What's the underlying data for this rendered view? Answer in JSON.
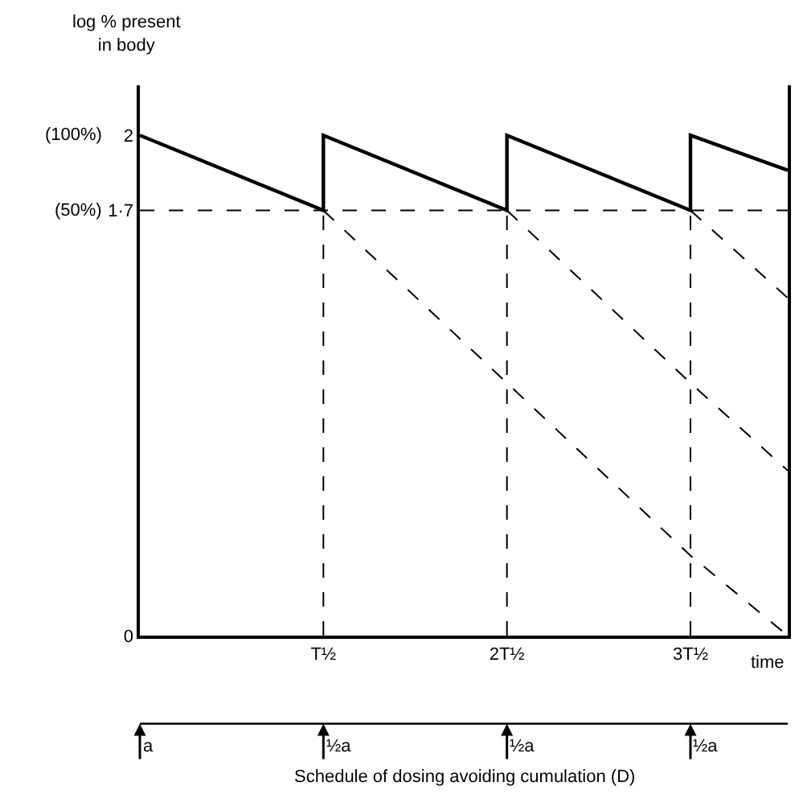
{
  "chart_data": {
    "type": "line",
    "ylabel": "log % present\nin body",
    "xlabel": "time",
    "xlim": [
      0,
      3.53
    ],
    "ylim": [
      0,
      2.2
    ],
    "xticks": [
      {
        "value": 0,
        "label": null
      },
      {
        "value": 1,
        "label": "T½"
      },
      {
        "value": 2,
        "label": "2T½"
      },
      {
        "value": 3,
        "label": "3T½"
      }
    ],
    "yticks": [
      0,
      {
        "value": 1.7,
        "label": "1·7"
      },
      2
    ],
    "series": [
      {
        "color": "#000000",
        "line_style": "solid",
        "x": [
          0,
          1,
          1,
          2,
          2,
          3,
          3,
          3.53
        ],
        "values": [
          2,
          1.7,
          2,
          1.7,
          2,
          1.7,
          2,
          1.86
        ]
      },
      {
        "color": "#000000",
        "line_style": "dashed",
        "x": [
          1,
          2,
          3,
          3.53
        ],
        "values": [
          1.7,
          1.01,
          0.32,
          0
        ]
      },
      {
        "color": "#000000",
        "line_style": "dashed",
        "x": [
          2,
          3,
          3.53
        ],
        "values": [
          1.7,
          1.01,
          0.66
        ]
      },
      {
        "color": "#000000",
        "line_style": "dashed",
        "x": [
          3,
          3.53
        ],
        "values": [
          1.7,
          1.35
        ]
      }
    ],
    "ref_lines": [
      {
        "axis": "y",
        "value": 1.7,
        "color": "#000000",
        "line_style": "dashed"
      },
      {
        "axis": "x",
        "value": 1,
        "color": "#000000",
        "line_style": "dashed"
      },
      {
        "axis": "x",
        "value": 2,
        "color": "#000000",
        "line_style": "dashed"
      },
      {
        "axis": "x",
        "value": 3,
        "color": "#000000",
        "line_style": "dashed"
      }
    ],
    "annotations": [
      "(100%)",
      "(50%)",
      "a",
      "½a",
      "½a",
      "½a",
      "Schedule of dosing avoiding cumulation (D)"
    ],
    "grid": false,
    "legend": false
  }
}
